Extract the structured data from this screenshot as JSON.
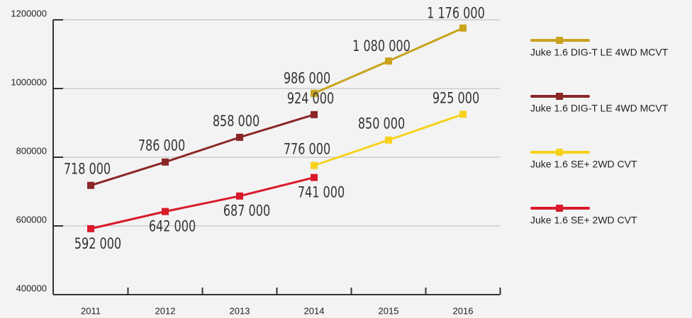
{
  "chart_data": {
    "type": "line",
    "categories": [
      "2011",
      "2012",
      "2013",
      "2014",
      "2015",
      "2016"
    ],
    "series": [
      {
        "name": "Juke 1.6 DIG-T LE 4WD MCVT",
        "color": "#c9a31e",
        "values": [
          null,
          null,
          null,
          986000,
          1080000,
          1176000
        ],
        "value_labels": [
          null,
          null,
          null,
          "986 000",
          "1 080 000",
          "1 176 000"
        ]
      },
      {
        "name": "Juke 1.6 DIG-T LE 4WD MCVT",
        "color": "#8b2626",
        "values": [
          718000,
          786000,
          858000,
          924000,
          null,
          null
        ],
        "value_labels": [
          "718 000",
          "786 000",
          "858 000",
          "924 000",
          null,
          null
        ]
      },
      {
        "name": "Juke 1.6 SE+ 2WD CVT",
        "color": "#f6d21e",
        "values": [
          null,
          null,
          null,
          776000,
          850000,
          925000
        ],
        "value_labels": [
          null,
          null,
          null,
          "776 000",
          "850 000",
          "925 000"
        ]
      },
      {
        "name": "Juke 1.6 SE+ 2WD CVT",
        "color": "#d91a2a",
        "values": [
          592000,
          642000,
          687000,
          741000,
          null,
          null
        ],
        "value_labels": [
          "592 000",
          "642 000",
          "687 000",
          "741 000",
          null,
          null
        ]
      }
    ],
    "ylim": [
      400000,
      1200000
    ],
    "yticks": [
      400000,
      600000,
      800000,
      1000000,
      1200000
    ],
    "grid": true,
    "legend": "right"
  }
}
